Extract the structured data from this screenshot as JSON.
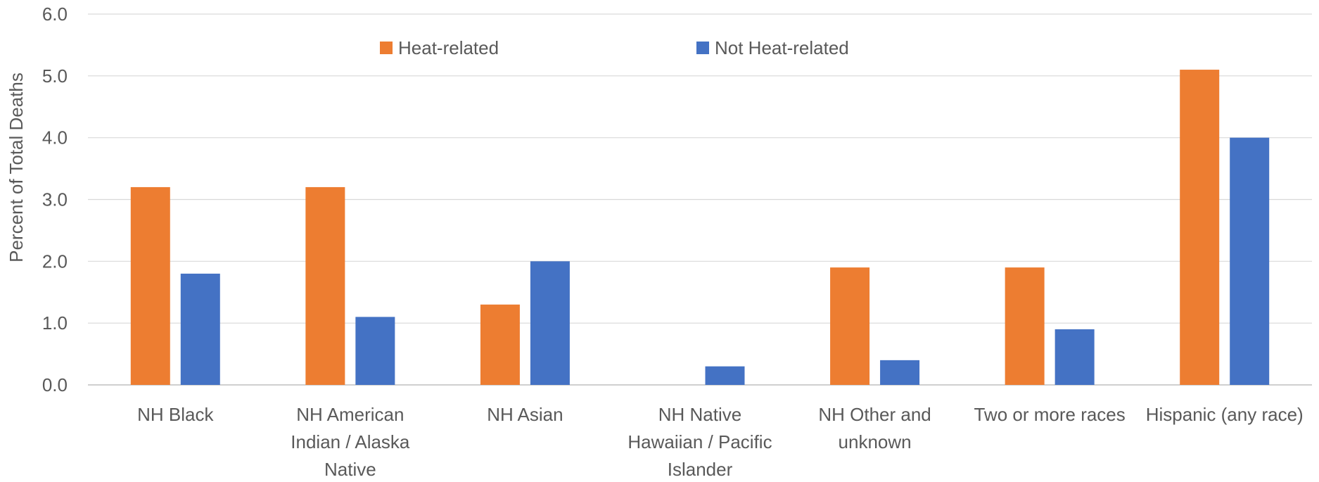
{
  "chart_data": {
    "type": "bar",
    "title": "",
    "xlabel": "",
    "ylabel": "Percent of Total Deaths",
    "ylim": [
      0,
      6
    ],
    "yticks": [
      "0.0",
      "1.0",
      "2.0",
      "3.0",
      "4.0",
      "5.0",
      "6.0"
    ],
    "grid": true,
    "legend_position": "top",
    "categories": [
      [
        "NH Black"
      ],
      [
        "NH American",
        "Indian / Alaska",
        "Native"
      ],
      [
        "NH Asian"
      ],
      [
        "NH Native",
        "Hawaiian / Pacific",
        "Islander"
      ],
      [
        "NH Other and",
        "unknown"
      ],
      [
        "Two or more races"
      ],
      [
        "Hispanic (any race)"
      ]
    ],
    "series": [
      {
        "name": "Heat-related",
        "color": "#ED7D31",
        "values": [
          3.2,
          3.2,
          1.3,
          0.0,
          1.9,
          1.9,
          5.1
        ]
      },
      {
        "name": "Not Heat-related",
        "color": "#4472C4",
        "values": [
          1.8,
          1.1,
          2.0,
          0.3,
          0.4,
          0.9,
          4.0
        ]
      }
    ]
  }
}
